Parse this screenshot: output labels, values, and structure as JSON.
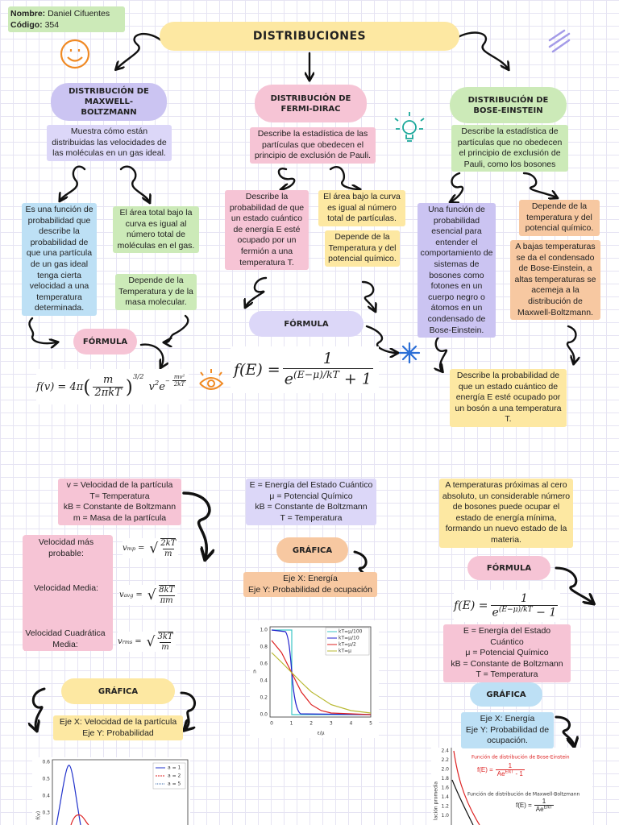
{
  "header": {
    "name_label": "Nombre:",
    "name": "Daniel Cifuentes",
    "code_label": "Código:",
    "code": "354"
  },
  "title": "DISTRIBUCIONES",
  "mb": {
    "heading": "DISTRIBUCIÓN DE MAXWELL-BOLTZMANN",
    "description": "Muestra cómo están distribuidas las velocidades de las moléculas en un gas ideal.",
    "definition": "Es una función de probabilidad que describe la probabilidad de que una partícula de un gas ideal tenga cierta velocidad a una temperatura determinada.",
    "area": "El área total bajo la curva es igual al número total de moléculas en el gas.",
    "depends": "Depende de la Temperatura y de la masa molecular.",
    "formula_label": "FÓRMULA",
    "formula": {
      "lhs": "f(v) = 4π",
      "open": "(",
      "num": "m",
      "den": "2πkT",
      "close": ")",
      "pow": "3/2",
      "mid": "v",
      "mid_pow": "2",
      "base": "e",
      "exp_sign": "−",
      "exp_num": "mv²",
      "exp_den": "2kT"
    },
    "variables": [
      "v = Velocidad de la partícula",
      "T= Temperatura",
      "kB = Constante de Boltzmann",
      "m = Masa de la partícula"
    ],
    "velocities": [
      {
        "label": "Velocidad más probable:",
        "formula": {
          "v": "v",
          "sub": "mp",
          "eq": "=",
          "root": "√",
          "num": "2kT",
          "den": "m"
        }
      },
      {
        "label": "Velocidad Media:",
        "formula": {
          "v": "v",
          "sub": "avg",
          "eq": "=",
          "root": "√",
          "num": "8kT",
          "den": "πm"
        }
      },
      {
        "label": "Velocidad Cuadrática Media:",
        "formula": {
          "v": "v",
          "sub": "rms",
          "eq": "=",
          "root": "√",
          "num": "3kT",
          "den": "m"
        }
      }
    ],
    "graph_label": "GRÁFICA",
    "axes": [
      "Eje X: Velocidad de la partícula",
      "Eje Y: Probabilidad"
    ],
    "plot": {
      "yticks": [
        "0.6",
        "0.5",
        "0.4",
        "0.3"
      ],
      "ylabel": "f(v)",
      "legend": [
        "a = 1",
        "a = 2",
        "a = 5"
      ]
    }
  },
  "fd": {
    "heading": "DISTRIBUCIÓN DE FERMI-DIRAC",
    "description": "Describe la estadística de las partículas que obedecen el principio de exclusión de Pauli.",
    "definition": "Describe la probabilidad de que un estado cuántico de energía E esté ocupado por un fermión a una temperatura T.",
    "area": "El área bajo la curva es igual al número total de partículas.",
    "depends": "Depende de la Temperatura y del potencial químico.",
    "formula_label": "FÓRMULA",
    "formula": {
      "lhs": "f(E) =",
      "num": "1",
      "base": "e",
      "exp": "(E−μ)/kT",
      "tail": "+ 1"
    },
    "variables": [
      "E = Energía del Estado Cuántico",
      "μ = Potencial Químico",
      "kB = Constante de Boltzmann",
      "T = Temperatura"
    ],
    "graph_label": "GRÁFICA",
    "axes": [
      "Eje X: Energía",
      "Eje Y: Probabilidad de ocupación"
    ],
    "plot": {
      "yticks": [
        "1.0",
        "0.8",
        "0.6",
        "0.4",
        "0.2",
        "0.0"
      ],
      "xticks": [
        "0",
        "1",
        "2",
        "3",
        "4",
        "5"
      ],
      "xlabel": "ε/μ",
      "ylabel": "n̄",
      "legend": [
        "kT=μ/100",
        "kT=μ/10",
        "kT=μ/2",
        "kT=μ"
      ]
    }
  },
  "be": {
    "heading": "DISTRIBUCIÓN DE BOSE-EINSTEIN",
    "description": "Describe la estadística de partículas que no obedecen el principio de exclusión de Pauli, como los bosones",
    "definition": "Una función de probabilidad esencial para entender el comportamiento de sistemas de bosones como fotones en un cuerpo negro o átomos en un condensado de Bose-Einstein.",
    "depends": "Depende de la temperatura y del potencial químico.",
    "low_temp": "A bajas temperaturas se da el condensado de Bose-Einstein, a altas temperaturas se acemeja a la distribución de Maxwell-Boltzmann.",
    "probability": "Describe la probabilidad de que un estado cuántico de energía E esté ocupado por un bosón a una temperatura T.",
    "note": "A temperaturas próximas al cero absoluto, un considerable número de bosones puede ocupar el estado de energía mínima, formando un nuevo estado de la materia.",
    "formula_label": "FÓRMULA",
    "formula": {
      "lhs": "f(E) =",
      "num": "1",
      "base": "e",
      "exp": "(E−μ)/kT",
      "tail": "− 1"
    },
    "variables": [
      "E = Energía del Estado Cuántico",
      "μ = Potencial Químico",
      "kB = Constante de Boltzmann",
      "T = Temperatura"
    ],
    "graph_label": "GRÁFICA",
    "axes": [
      "Eje X: Energía",
      "Eje Y: Probabilidad de ocupación."
    ],
    "plot": {
      "yticks": [
        "2.4",
        "2.2",
        "2.0",
        "1.8",
        "1.6",
        "1.4",
        "1.2",
        "1.0"
      ],
      "ylabel": "lación promedia",
      "be_label": "Función de distribución de Bose-Einstein",
      "be_formula": {
        "lhs": "f(E) =",
        "num": "1",
        "den": "Ae",
        "exp": "E/kT",
        "tail": "- 1"
      },
      "mb_label": "Función de distribución de Maxwell-Boltzmann",
      "mb_formula": {
        "lhs": "f(E) =",
        "num": "1",
        "den": "Ae",
        "exp": "E/kT"
      }
    }
  }
}
